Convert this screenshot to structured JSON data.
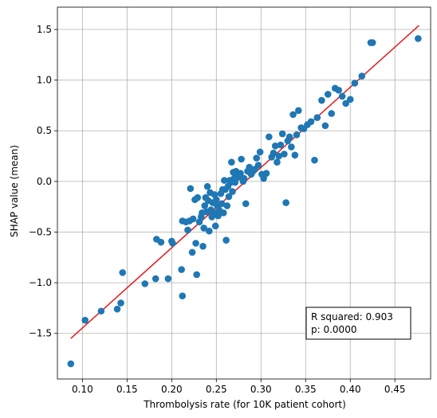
{
  "chart_data": {
    "type": "scatter",
    "xlabel": "Thrombolysis rate (for 10K patient cohort)",
    "ylabel": "SHAP value (mean)",
    "xlim": [
      0.072,
      0.49
    ],
    "ylim": [
      -1.95,
      1.72
    ],
    "xticks": [
      0.1,
      0.15,
      0.2,
      0.25,
      0.3,
      0.35,
      0.4,
      0.45
    ],
    "xtick_labels": [
      "0.10",
      "0.15",
      "0.20",
      "0.25",
      "0.30",
      "0.35",
      "0.40",
      "0.45"
    ],
    "yticks": [
      -1.5,
      -1.0,
      -0.5,
      0.0,
      0.5,
      1.0,
      1.5
    ],
    "ytick_labels": [
      "−1.5",
      "−1.0",
      "−0.5",
      "0.0",
      "0.5",
      "1.0",
      "1.5"
    ],
    "grid": true,
    "colors": {
      "points": "#1f77b4",
      "fit_line": "#e31a1c"
    },
    "fit_line": {
      "x": [
        0.087,
        0.477
      ],
      "y": [
        -1.55,
        1.54
      ]
    },
    "annotation": {
      "r_squared": "R squared: 0.903",
      "p_value": "p: 0.0000",
      "position": "bottom-right"
    },
    "points": {
      "x": [
        0.087,
        0.103,
        0.121,
        0.139,
        0.143,
        0.145,
        0.17,
        0.182,
        0.183,
        0.188,
        0.196,
        0.2,
        0.201,
        0.211,
        0.212,
        0.212,
        0.216,
        0.218,
        0.22,
        0.221,
        0.223,
        0.224,
        0.226,
        0.227,
        0.228,
        0.229,
        0.231,
        0.233,
        0.234,
        0.235,
        0.236,
        0.237,
        0.238,
        0.239,
        0.24,
        0.241,
        0.242,
        0.243,
        0.244,
        0.245,
        0.246,
        0.247,
        0.248,
        0.249,
        0.25,
        0.251,
        0.252,
        0.253,
        0.254,
        0.255,
        0.256,
        0.257,
        0.258,
        0.259,
        0.26,
        0.261,
        0.262,
        0.263,
        0.264,
        0.265,
        0.266,
        0.267,
        0.268,
        0.269,
        0.27,
        0.271,
        0.272,
        0.273,
        0.274,
        0.275,
        0.276,
        0.277,
        0.278,
        0.28,
        0.281,
        0.283,
        0.285,
        0.287,
        0.289,
        0.291,
        0.293,
        0.295,
        0.297,
        0.299,
        0.301,
        0.303,
        0.306,
        0.309,
        0.312,
        0.314,
        0.316,
        0.318,
        0.32,
        0.322,
        0.324,
        0.326,
        0.328,
        0.33,
        0.332,
        0.334,
        0.336,
        0.338,
        0.34,
        0.342,
        0.345,
        0.348,
        0.352,
        0.356,
        0.36,
        0.363,
        0.368,
        0.372,
        0.375,
        0.379,
        0.383,
        0.387,
        0.391,
        0.395,
        0.4,
        0.405,
        0.413,
        0.423,
        0.425,
        0.476
      ],
      "y": [
        -1.8,
        -1.37,
        -1.28,
        -1.26,
        -1.2,
        -0.9,
        -1.01,
        -0.96,
        -0.57,
        -0.6,
        -0.96,
        -0.59,
        -0.61,
        -0.87,
        -1.13,
        -0.39,
        -0.4,
        -0.48,
        -0.39,
        -0.07,
        -0.7,
        -0.37,
        -0.18,
        -0.61,
        -0.92,
        -0.16,
        -0.4,
        -0.35,
        -0.31,
        -0.64,
        -0.46,
        -0.24,
        -0.16,
        -0.3,
        -0.05,
        -0.19,
        -0.49,
        -0.11,
        -0.28,
        -0.35,
        -0.21,
        -0.31,
        -0.13,
        -0.44,
        -0.18,
        -0.24,
        -0.34,
        -0.28,
        -0.31,
        -0.12,
        -0.22,
        -0.08,
        -0.31,
        0.01,
        -0.08,
        -0.58,
        -0.24,
        -0.05,
        -0.15,
        0.01,
        -0.01,
        0.19,
        -0.1,
        0.09,
        0.03,
        -0.01,
        0.1,
        0.08,
        0.04,
        0.06,
        0.06,
        0.08,
        0.22,
        0.0,
        0.03,
        -0.22,
        0.1,
        0.14,
        0.07,
        0.1,
        0.12,
        0.23,
        0.16,
        0.29,
        0.07,
        0.03,
        0.08,
        0.44,
        0.24,
        0.28,
        0.35,
        0.19,
        0.25,
        0.36,
        0.47,
        0.27,
        -0.21,
        0.4,
        0.44,
        0.34,
        0.66,
        0.26,
        0.46,
        0.7,
        0.53,
        0.52,
        0.56,
        0.59,
        0.21,
        0.63,
        0.8,
        0.55,
        0.86,
        0.67,
        0.92,
        0.9,
        0.84,
        0.77,
        0.81,
        0.97,
        1.04,
        1.37,
        1.37,
        1.41
      ]
    }
  }
}
